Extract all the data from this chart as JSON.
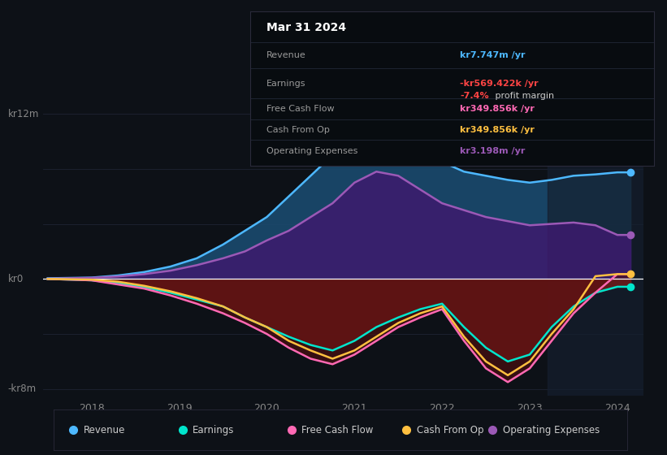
{
  "bg_color": "#0d1117",
  "x_ticks": [
    "2018",
    "2019",
    "2020",
    "2021",
    "2022",
    "2023",
    "2024"
  ],
  "legend": [
    {
      "label": "Revenue",
      "color": "#4db8ff"
    },
    {
      "label": "Earnings",
      "color": "#00e5cc"
    },
    {
      "label": "Free Cash Flow",
      "color": "#ff69b4"
    },
    {
      "label": "Cash From Op",
      "color": "#ffc040"
    },
    {
      "label": "Operating Expenses",
      "color": "#9b59b6"
    }
  ],
  "revenue_color": "#4db8ff",
  "earnings_color": "#00e5cc",
  "fcf_color": "#ff69b4",
  "cashop_color": "#ffc040",
  "opex_color": "#9b59b6",
  "revenue_fill_color": "#1a4a6e",
  "opex_fill_color": "#3d1a6e",
  "tooltip_revenue_color": "#4db8ff",
  "tooltip_earnings_color": "#ff4444",
  "tooltip_fcf_color": "#ff69b4",
  "tooltip_cashop_color": "#ffc040",
  "tooltip_opex_color": "#9b59b6",
  "x": [
    2017.5,
    2018.0,
    2018.3,
    2018.6,
    2018.9,
    2019.2,
    2019.5,
    2019.75,
    2020.0,
    2020.25,
    2020.5,
    2020.75,
    2021.0,
    2021.25,
    2021.5,
    2021.75,
    2022.0,
    2022.25,
    2022.5,
    2022.75,
    2023.0,
    2023.25,
    2023.5,
    2023.75,
    2024.0,
    2024.15
  ],
  "revenue": [
    0.05,
    0.1,
    0.25,
    0.5,
    0.9,
    1.5,
    2.5,
    3.5,
    4.5,
    6.0,
    7.5,
    9.0,
    10.5,
    11.5,
    11.0,
    9.5,
    8.5,
    7.8,
    7.5,
    7.2,
    7.0,
    7.2,
    7.5,
    7.6,
    7.747,
    7.747
  ],
  "opex": [
    0.02,
    0.08,
    0.18,
    0.35,
    0.6,
    1.0,
    1.5,
    2.0,
    2.8,
    3.5,
    4.5,
    5.5,
    7.0,
    7.8,
    7.5,
    6.5,
    5.5,
    5.0,
    4.5,
    4.2,
    3.9,
    4.0,
    4.1,
    3.9,
    3.198,
    3.198
  ],
  "earnings": [
    0.0,
    -0.1,
    -0.3,
    -0.6,
    -1.0,
    -1.5,
    -2.0,
    -2.8,
    -3.5,
    -4.2,
    -4.8,
    -5.2,
    -4.5,
    -3.5,
    -2.8,
    -2.2,
    -1.8,
    -3.5,
    -5.0,
    -6.0,
    -5.5,
    -3.5,
    -2.0,
    -1.0,
    -0.5695,
    -0.5695
  ],
  "fcf": [
    0.0,
    -0.1,
    -0.4,
    -0.7,
    -1.2,
    -1.8,
    -2.5,
    -3.2,
    -4.0,
    -5.0,
    -5.8,
    -6.2,
    -5.5,
    -4.5,
    -3.5,
    -2.8,
    -2.2,
    -4.5,
    -6.5,
    -7.5,
    -6.5,
    -4.5,
    -2.5,
    -1.0,
    0.35,
    0.35
  ],
  "cashop": [
    0.0,
    -0.05,
    -0.2,
    -0.5,
    -0.9,
    -1.4,
    -2.0,
    -2.8,
    -3.5,
    -4.5,
    -5.2,
    -5.8,
    -5.2,
    -4.2,
    -3.2,
    -2.5,
    -2.0,
    -4.2,
    -6.0,
    -7.0,
    -6.0,
    -4.0,
    -2.2,
    0.2,
    0.35,
    0.35
  ],
  "ylim": [
    -8.5,
    13.0
  ],
  "xlim": [
    2017.45,
    2024.3
  ]
}
